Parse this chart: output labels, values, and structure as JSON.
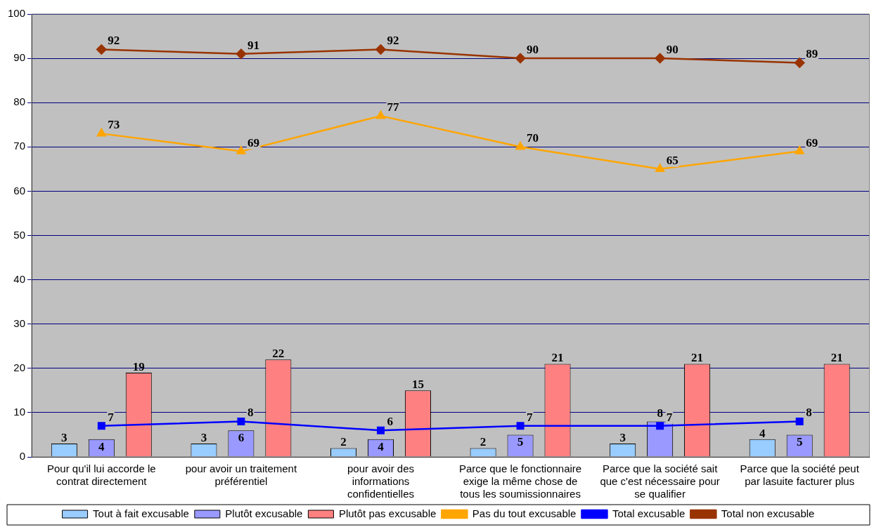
{
  "chart_data": {
    "type": "bar",
    "categories": [
      "Pour qu'il lui accorde le contrat directement",
      "pour avoir un traitement préférentiel",
      "pour avoir des informations confidentielles",
      "Parce que le fonctionnaire exige la même chose de tous les soumissionnaires",
      "Parce que la société sait que c'est nécessaire pour se qualifier",
      "Parce que la société peut par lasuite facturer plus"
    ],
    "series": [
      {
        "name": "Tout à fait excusable",
        "color": "#99ccff",
        "values": [
          3,
          3,
          2,
          2,
          3,
          4
        ]
      },
      {
        "name": "Plutôt excusable",
        "color": "#9999ff",
        "values": [
          4,
          6,
          4,
          5,
          8,
          5
        ]
      },
      {
        "name": "Plutôt pas excusable",
        "color": "#ff8080",
        "values": [
          19,
          22,
          15,
          21,
          21,
          21
        ]
      },
      {
        "name": "Pas du tout excusable",
        "type": "line",
        "marker": "triangle",
        "color": "#ffa500",
        "values": [
          73,
          69,
          77,
          70,
          65,
          69
        ]
      },
      {
        "name": "Total excusable",
        "type": "line",
        "marker": "square",
        "color": "#0000ff",
        "values": [
          7,
          8,
          6,
          7,
          7,
          8
        ]
      },
      {
        "name": "Total non excusable",
        "type": "line",
        "marker": "diamond",
        "color": "#993300",
        "values": [
          92,
          91,
          92,
          90,
          90,
          89
        ]
      }
    ],
    "ylim": [
      0,
      100
    ],
    "yticks": [
      0,
      10,
      20,
      30,
      40,
      50,
      60,
      70,
      80,
      90,
      100
    ],
    "grid": "y",
    "legend": "bottom",
    "data_labels": true
  }
}
